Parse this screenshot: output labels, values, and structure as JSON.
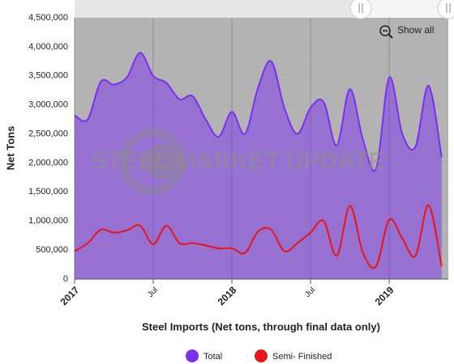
{
  "chart_data": {
    "type": "area",
    "x_axis_title": "Steel Imports (Net tons, through final data only)",
    "y_axis_title": "Net Tons",
    "watermark": "STEEL MARKET UPDATE",
    "button": "Show all",
    "categories": [
      "2017",
      null,
      null,
      null,
      null,
      null,
      "Jul",
      null,
      null,
      null,
      null,
      null,
      "2018",
      null,
      null,
      null,
      null,
      null,
      "Jul",
      null,
      null,
      null,
      null,
      null,
      "2019",
      null,
      null,
      null,
      null
    ],
    "series": [
      {
        "name": "Total",
        "color": "#7b2ff0",
        "values": [
          2820000,
          2750000,
          3400000,
          3350000,
          3480000,
          3900000,
          3500000,
          3380000,
          3100000,
          3150000,
          2750000,
          2450000,
          2880000,
          2500000,
          3300000,
          3750000,
          2950000,
          2500000,
          2950000,
          3050000,
          2300000,
          3270000,
          2400000,
          1900000,
          3470000,
          2500000,
          2280000,
          3330000,
          2100000
        ]
      },
      {
        "name": "Semi- Finished",
        "color": "#e8141a",
        "values": [
          480000,
          620000,
          850000,
          800000,
          840000,
          920000,
          600000,
          920000,
          620000,
          620000,
          580000,
          530000,
          530000,
          450000,
          820000,
          850000,
          480000,
          620000,
          800000,
          1000000,
          400000,
          1260000,
          450000,
          220000,
          1020000,
          700000,
          400000,
          1270000,
          220000
        ]
      }
    ],
    "ylim": [
      0,
      4500000
    ],
    "yticks": [
      0,
      {
        "value": 500000,
        "label": "500,000"
      },
      {
        "value": 1000000,
        "label": "1,000,000"
      },
      {
        "value": 1500000,
        "label": "1,500,000"
      },
      {
        "value": 2000000,
        "label": "2,000,000"
      },
      {
        "value": 2500000,
        "label": "2,500,000"
      },
      {
        "value": 3000000,
        "label": "3,000,000"
      },
      {
        "value": 3500000,
        "label": "3,500,000"
      },
      {
        "value": 4000000,
        "label": "4,000,000"
      },
      {
        "value": 4500000,
        "label": "4,500,000"
      }
    ],
    "grid": true,
    "legend": "bottom"
  }
}
